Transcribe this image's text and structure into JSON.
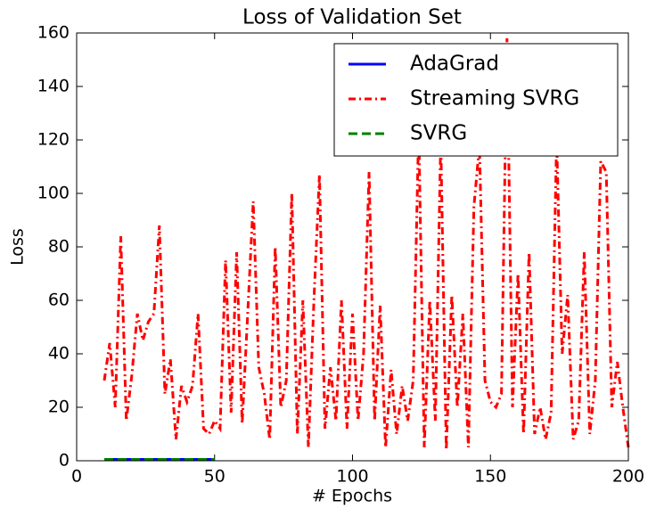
{
  "chart_data": {
    "type": "line",
    "title": "Loss of Validation Set",
    "xlabel": "# Epochs",
    "ylabel": "Loss",
    "xlim": [
      0,
      200
    ],
    "xticks": [
      0,
      50,
      100,
      150,
      200
    ],
    "ylim": [
      0,
      160
    ],
    "yticks": [
      0,
      20,
      40,
      60,
      80,
      100,
      120,
      140,
      160
    ],
    "grid": false,
    "legend": "upper right",
    "series": [
      {
        "name": "AdaGrad",
        "color": "#0000ff",
        "linestyle": "solid",
        "x": [
          10,
          50
        ],
        "values": [
          0.5,
          0.5
        ]
      },
      {
        "name": "Streaming SVRG",
        "color": "#ff0000",
        "linestyle": "dashdot",
        "x": [
          10,
          12,
          14,
          16,
          18,
          20,
          22,
          24,
          26,
          28,
          30,
          32,
          34,
          36,
          38,
          40,
          42,
          44,
          46,
          48,
          50,
          52,
          54,
          56,
          58,
          60,
          62,
          64,
          66,
          68,
          70,
          72,
          74,
          76,
          78,
          80,
          82,
          84,
          86,
          88,
          90,
          92,
          94,
          96,
          98,
          100,
          102,
          104,
          106,
          108,
          110,
          112,
          114,
          116,
          118,
          120,
          122,
          124,
          126,
          128,
          130,
          132,
          134,
          136,
          138,
          140,
          142,
          144,
          146,
          148,
          150,
          152,
          154,
          156,
          158,
          160,
          162,
          164,
          166,
          168,
          170,
          172,
          174,
          176,
          178,
          180,
          182,
          184,
          186,
          188,
          190,
          192,
          194,
          196,
          198,
          200
        ],
        "values": [
          30,
          44,
          20,
          84,
          15,
          32,
          55,
          45,
          52,
          55,
          88,
          25,
          38,
          8,
          28,
          22,
          28,
          55,
          12,
          10,
          15,
          12,
          75,
          18,
          78,
          14,
          55,
          97,
          35,
          25,
          8,
          80,
          20,
          30,
          100,
          10,
          60,
          5,
          60,
          107,
          12,
          35,
          15,
          60,
          12,
          55,
          15,
          40,
          108,
          15,
          58,
          5,
          34,
          10,
          28,
          15,
          30,
          125,
          5,
          60,
          15,
          120,
          4,
          62,
          20,
          55,
          5,
          95,
          118,
          30,
          22,
          20,
          25,
          158,
          20,
          70,
          10,
          78,
          10,
          20,
          8,
          18,
          120,
          40,
          62,
          8,
          15,
          78,
          10,
          30,
          112,
          108,
          20,
          37,
          20,
          5
        ]
      },
      {
        "name": "SVRG",
        "color": "#008000",
        "linestyle": "dashed",
        "x": [
          10,
          50
        ],
        "values": [
          0.5,
          0.5
        ]
      }
    ]
  }
}
